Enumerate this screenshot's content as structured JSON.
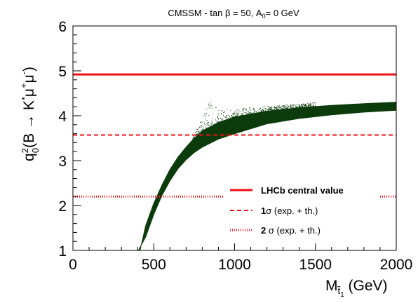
{
  "chart_data": {
    "type": "scatter",
    "title": {
      "prefix": "CMSSM - tan",
      "beta": "β",
      "middle": " = 50, A",
      "sub": "0",
      "suffix": "= 0 GeV"
    },
    "xlabel": {
      "main": "M",
      "sub_symbol": "t̃",
      "sub_index": "1",
      "unit": " (GeV)"
    },
    "ylabel": {
      "q": "q",
      "sup": "2",
      "sub": "0",
      "text": "(B → K",
      "star": "*",
      "mu1": "μ",
      "plus": "+",
      "mu2": "μ",
      "minus": "-",
      "close": ")"
    },
    "xlim": [
      0,
      2000
    ],
    "ylim": [
      1,
      6
    ],
    "x_ticks": [
      0,
      500,
      1000,
      1500,
      2000
    ],
    "y_ticks": [
      1,
      2,
      3,
      4,
      5,
      6
    ],
    "grid": false,
    "legend_position": "bottom-right",
    "reference_lines": [
      {
        "name": "LHCb central value",
        "label_main": "LHCb central value",
        "label_sigma": "",
        "y": 4.92,
        "style": "solid",
        "color": "#ee1111"
      },
      {
        "name": "1σ (exp. + th.)",
        "label_main": "1",
        "label_sigma": "σ (exp. + th.)",
        "y": 3.57,
        "style": "dashed",
        "color": "#ee1111"
      },
      {
        "name": "2 σ (exp. + th.)",
        "label_main": "2 ",
        "label_sigma": "σ (exp. + th.)",
        "y": 2.2,
        "style": "dotted",
        "color": "#ee1111"
      }
    ],
    "series": [
      {
        "color": "#0b3b0b",
        "band_upper": [
          {
            "x": 415,
            "y": 1.0
          },
          {
            "x": 450,
            "y": 1.55
          },
          {
            "x": 500,
            "y": 2.05
          },
          {
            "x": 550,
            "y": 2.45
          },
          {
            "x": 600,
            "y": 2.8
          },
          {
            "x": 650,
            "y": 3.08
          },
          {
            "x": 700,
            "y": 3.3
          },
          {
            "x": 750,
            "y": 3.5
          },
          {
            "x": 800,
            "y": 3.66
          },
          {
            "x": 900,
            "y": 3.85
          },
          {
            "x": 1000,
            "y": 3.97
          },
          {
            "x": 1200,
            "y": 4.1
          },
          {
            "x": 1400,
            "y": 4.18
          },
          {
            "x": 1600,
            "y": 4.23
          },
          {
            "x": 1800,
            "y": 4.27
          },
          {
            "x": 2000,
            "y": 4.3
          }
        ],
        "band_lower": [
          {
            "x": 2000,
            "y": 4.12
          },
          {
            "x": 1800,
            "y": 4.08
          },
          {
            "x": 1600,
            "y": 4.02
          },
          {
            "x": 1400,
            "y": 3.94
          },
          {
            "x": 1200,
            "y": 3.82
          },
          {
            "x": 1000,
            "y": 3.6
          },
          {
            "x": 900,
            "y": 3.48
          },
          {
            "x": 800,
            "y": 3.3
          },
          {
            "x": 750,
            "y": 3.18
          },
          {
            "x": 700,
            "y": 3.02
          },
          {
            "x": 650,
            "y": 2.82
          },
          {
            "x": 600,
            "y": 2.55
          },
          {
            "x": 550,
            "y": 2.22
          },
          {
            "x": 500,
            "y": 1.8
          },
          {
            "x": 450,
            "y": 1.3
          },
          {
            "x": 405,
            "y": 1.0
          }
        ],
        "upper_scatter_envelope": [
          {
            "x": 740,
            "y": 3.52
          },
          {
            "x": 800,
            "y": 4.05
          },
          {
            "x": 840,
            "y": 4.38
          },
          {
            "x": 900,
            "y": 4.15
          },
          {
            "x": 1000,
            "y": 4.16
          },
          {
            "x": 1200,
            "y": 4.22
          },
          {
            "x": 1500,
            "y": 4.3
          }
        ]
      }
    ]
  }
}
